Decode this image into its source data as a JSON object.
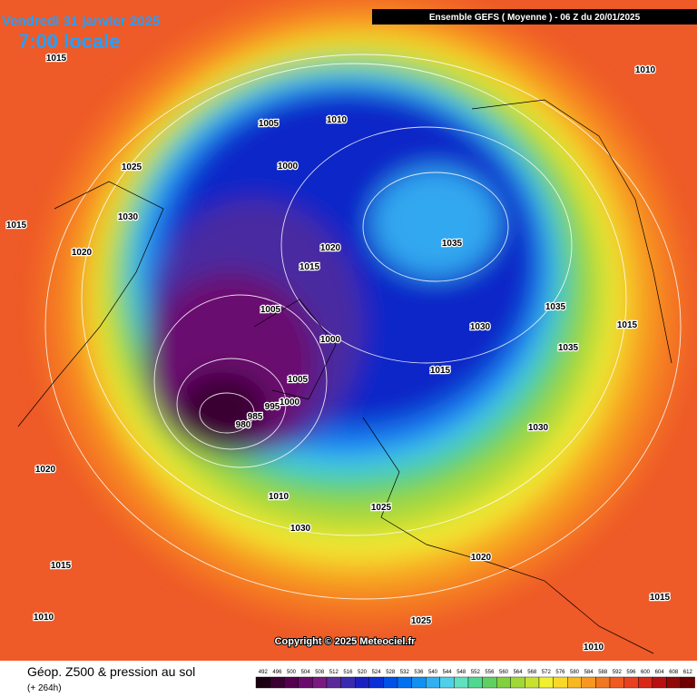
{
  "header": {
    "date": "Vendredi 31 janvier 2025",
    "time": "7:00 locale",
    "model": "Ensemble GEFS  ( Moyenne )  -  06 Z du 20/01/2025",
    "copyright": "Copyright © 2025 Meteociel.fr"
  },
  "footer": {
    "title": "Géop. Z500 & pression au sol",
    "lead": "(+ 264h)"
  },
  "scale": {
    "values": [
      492,
      496,
      500,
      504,
      508,
      512,
      516,
      520,
      524,
      528,
      532,
      536,
      540,
      544,
      548,
      552,
      556,
      560,
      564,
      568,
      572,
      576,
      580,
      584,
      588,
      592,
      596,
      600,
      604,
      608,
      612
    ],
    "colors": [
      "#1a0010",
      "#3a0030",
      "#55004f",
      "#6a0a6e",
      "#7a1a80",
      "#5a2a9a",
      "#3a2ab0",
      "#1a20c0",
      "#0a30d8",
      "#0050e8",
      "#0070f0",
      "#1090f0",
      "#30b0f0",
      "#50d0e8",
      "#60e0c0",
      "#50d890",
      "#60d060",
      "#80d040",
      "#a0d838",
      "#c8e030",
      "#f0f030",
      "#f8d828",
      "#f8b820",
      "#f89820",
      "#f07820",
      "#f05a20",
      "#e84020",
      "#d82818",
      "#b81010",
      "#900808",
      "#700000"
    ]
  },
  "isobars": [
    "1015",
    "1010",
    "1005",
    "1010",
    "1000",
    "1025",
    "1030",
    "1015",
    "1020",
    "1035",
    "1020",
    "1015",
    "1005",
    "1035",
    "1030",
    "1000",
    "1015",
    "1035",
    "1015",
    "1005",
    "995",
    "1000",
    "985",
    "980",
    "1030",
    "1020",
    "1010",
    "1025",
    "1030",
    "1020",
    "1015",
    "1010",
    "1025",
    "1015",
    "1010"
  ]
}
